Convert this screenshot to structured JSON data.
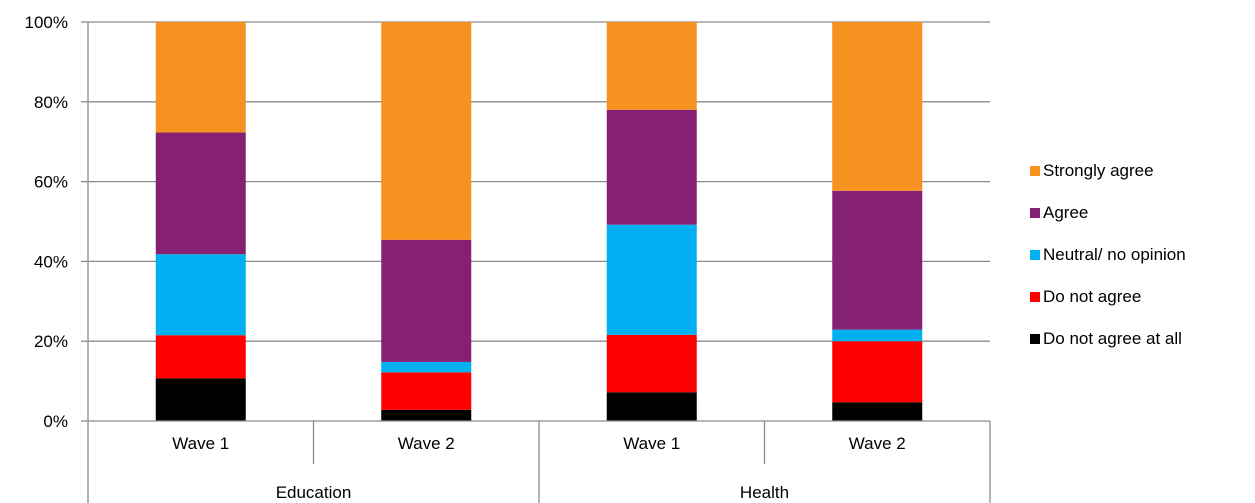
{
  "chart_data": {
    "type": "bar",
    "stacked": true,
    "normalized": true,
    "groups": [
      {
        "label": "Education",
        "categories": [
          "Wave 1",
          "Wave 2"
        ]
      },
      {
        "label": "Health",
        "categories": [
          "Wave 1",
          "Wave 2"
        ]
      }
    ],
    "categories": [
      "Wave 1",
      "Wave 2",
      "Wave 1",
      "Wave 2"
    ],
    "series": [
      {
        "name": "Do not agree at all",
        "color": "#000000",
        "values": [
          10.7,
          2.8,
          7.2,
          4.7
        ]
      },
      {
        "name": "Do not agree",
        "color": "#ff0000",
        "values": [
          10.8,
          9.4,
          14.4,
          15.3
        ]
      },
      {
        "name": "Neutral/ no opinion",
        "color": "#00b0f0",
        "values": [
          20.3,
          2.6,
          27.6,
          2.9
        ]
      },
      {
        "name": "Agree",
        "color": "#862072",
        "values": [
          30.5,
          30.6,
          28.8,
          34.8
        ]
      },
      {
        "name": "Strongly agree",
        "color": "#f79120",
        "values": [
          27.7,
          54.6,
          22.0,
          42.3
        ]
      }
    ],
    "yticks": [
      "0%",
      "20%",
      "40%",
      "60%",
      "80%",
      "100%"
    ],
    "ylim": [
      0,
      100
    ],
    "grid": true,
    "legend_position": "right",
    "legend_order": [
      "Strongly agree",
      "Agree",
      "Neutral/ no opinion",
      "Do not agree",
      "Do not agree at all"
    ]
  }
}
